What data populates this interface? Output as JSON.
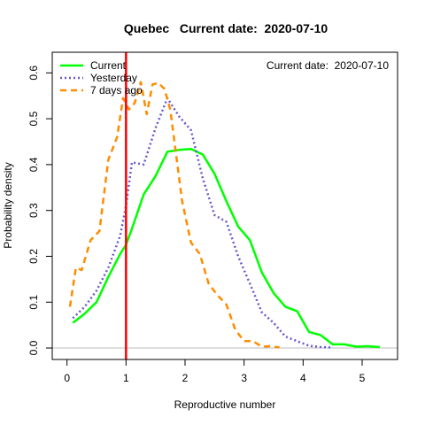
{
  "chart_data": {
    "type": "line",
    "title": "Quebec   Current date:  2020-07-10",
    "annotation": "Current date:  2020-07-10",
    "xlabel": "Reproductive number",
    "ylabel": "Probability density",
    "xlim": [
      -0.25,
      5.6
    ],
    "ylim": [
      -0.025,
      0.645
    ],
    "x_ticks": [
      0,
      1,
      2,
      3,
      4,
      5
    ],
    "y_ticks": [
      0.0,
      0.1,
      0.2,
      0.3,
      0.4,
      0.5,
      0.6
    ],
    "x_tick_labels": [
      "0",
      "1",
      "2",
      "3",
      "4",
      "5"
    ],
    "y_tick_labels": [
      "0.0",
      "0.1",
      "0.2",
      "0.3",
      "0.4",
      "0.5",
      "0.6"
    ],
    "grid": false,
    "legend_position": "top-left",
    "reference_line": {
      "x": 1,
      "color": "#ff0000"
    },
    "baseline": {
      "y": 0,
      "color": "#bebebe"
    },
    "series": [
      {
        "name": "Current",
        "color": "#00ff00",
        "dash": "solid",
        "x": [
          0.1,
          0.3,
          0.5,
          0.7,
          0.9,
          1.0,
          1.1,
          1.3,
          1.5,
          1.7,
          1.9,
          2.1,
          2.3,
          2.5,
          2.7,
          2.9,
          3.1,
          3.3,
          3.5,
          3.7,
          3.9,
          4.1,
          4.3,
          4.5,
          4.7,
          4.9,
          5.1,
          5.3
        ],
        "y": [
          0.055,
          0.075,
          0.1,
          0.155,
          0.205,
          0.225,
          0.26,
          0.335,
          0.375,
          0.428,
          0.432,
          0.434,
          0.422,
          0.38,
          0.32,
          0.265,
          0.235,
          0.165,
          0.12,
          0.09,
          0.08,
          0.035,
          0.028,
          0.008,
          0.008,
          0.003,
          0.004,
          0.002
        ]
      },
      {
        "name": "Yesterday",
        "color": "#6a5acd",
        "dash": "dotted",
        "x": [
          0.1,
          0.3,
          0.5,
          0.7,
          0.9,
          1.0,
          1.1,
          1.3,
          1.5,
          1.7,
          1.9,
          2.1,
          2.3,
          2.5,
          2.7,
          2.9,
          3.1,
          3.3,
          3.5,
          3.7,
          3.9,
          4.1,
          4.3,
          4.5
        ],
        "y": [
          0.065,
          0.09,
          0.125,
          0.175,
          0.245,
          0.31,
          0.405,
          0.4,
          0.48,
          0.545,
          0.505,
          0.475,
          0.37,
          0.29,
          0.275,
          0.2,
          0.14,
          0.078,
          0.055,
          0.025,
          0.015,
          0.005,
          0.002,
          0.001
        ]
      },
      {
        "name": "7 days ago",
        "color": "#ff8c00",
        "dash": "dashed",
        "x": [
          0.05,
          0.15,
          0.25,
          0.4,
          0.55,
          0.7,
          0.85,
          0.95,
          1.05,
          1.15,
          1.25,
          1.35,
          1.45,
          1.55,
          1.65,
          1.75,
          1.85,
          1.95,
          2.1,
          2.25,
          2.4,
          2.55,
          2.7,
          2.85,
          3.0,
          3.15,
          3.3,
          3.45,
          3.6
        ],
        "y": [
          0.09,
          0.175,
          0.17,
          0.235,
          0.255,
          0.41,
          0.46,
          0.545,
          0.52,
          0.535,
          0.58,
          0.51,
          0.575,
          0.578,
          0.565,
          0.52,
          0.42,
          0.32,
          0.23,
          0.205,
          0.14,
          0.115,
          0.095,
          0.04,
          0.015,
          0.015,
          0.003,
          0.004,
          0.001
        ]
      }
    ]
  }
}
